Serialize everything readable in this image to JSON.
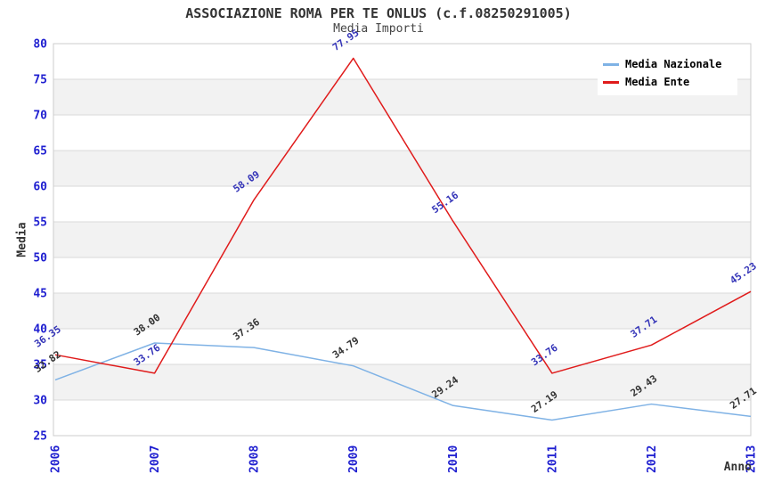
{
  "chart_data": {
    "type": "line",
    "title": "ASSOCIAZIONE ROMA PER TE ONLUS (c.f.08250291005)",
    "subtitle": "Media Importi",
    "xlabel": "Anno",
    "ylabel": "Media",
    "categories": [
      "2006",
      "2007",
      "2008",
      "2009",
      "2010",
      "2011",
      "2012",
      "2013"
    ],
    "ylim": [
      25,
      80
    ],
    "ytick_step": 5,
    "grid": true,
    "alternating_bands": true,
    "legend_position": "top-right",
    "series": [
      {
        "name": "Media Nazionale",
        "color": "#7fb2e5",
        "label_color": "#333333",
        "values": [
          32.82,
          38.0,
          37.36,
          34.79,
          29.24,
          27.19,
          29.43,
          27.71
        ]
      },
      {
        "name": "Media Ente",
        "color": "#e01b1b",
        "label_color": "#3434b8",
        "values": [
          36.35,
          33.76,
          58.09,
          77.95,
          55.16,
          33.76,
          37.71,
          45.23
        ]
      }
    ],
    "colors": {
      "tick_label": "#1f1fd0",
      "band_fill": "#f2f2f2",
      "gridline": "#d9d9d9",
      "plot_border": "#cccccc"
    }
  }
}
